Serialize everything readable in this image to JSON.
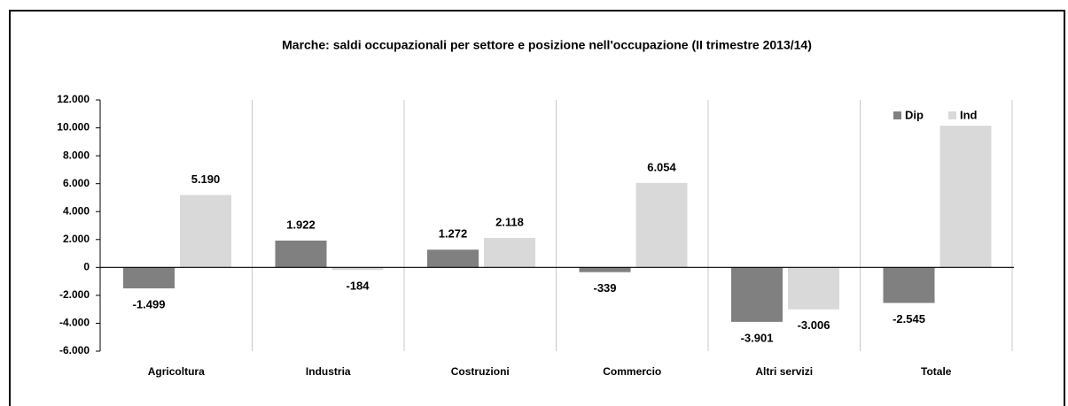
{
  "chart_data": {
    "type": "bar",
    "title": "Marche: saldi occupazionali per settore e posizione nell'occupazione (II trimestre 2013/14)",
    "categories": [
      "Agricoltura",
      "Industria",
      "Costruzioni",
      "Commercio",
      "Altri servizi",
      "Totale"
    ],
    "series": [
      {
        "name": "Dip",
        "color": "#808080",
        "values": [
          -1499,
          1922,
          1272,
          -339,
          -3901,
          -2545
        ],
        "value_labels": [
          "-1.499",
          "1.922",
          "1.272",
          "-339",
          "-3.901",
          "-2.545"
        ]
      },
      {
        "name": "Ind",
        "color": "#d9d9d9",
        "values": [
          5190,
          -184,
          2118,
          6054,
          -3006,
          10150
        ],
        "value_labels": [
          "5.190",
          "-184",
          "2.118",
          "6.054",
          "-3.006",
          null
        ]
      }
    ],
    "ylim": [
      -6000,
      12000
    ],
    "yticks": [
      {
        "value": -6000,
        "label": "-6.000"
      },
      {
        "value": -4000,
        "label": "-4.000"
      },
      {
        "value": -2000,
        "label": "-2.000"
      },
      0,
      {
        "value": 2000,
        "label": "2.000"
      },
      {
        "value": 4000,
        "label": "4.000"
      },
      {
        "value": 6000,
        "label": "6.000"
      },
      {
        "value": 8000,
        "label": "8.000"
      },
      {
        "value": 10000,
        "label": "10.000"
      },
      {
        "value": 12000,
        "label": "12.000"
      }
    ],
    "legend": "top-right",
    "grid": false
  }
}
